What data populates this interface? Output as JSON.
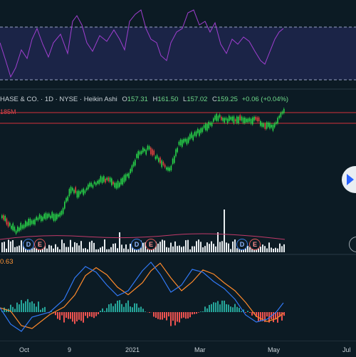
{
  "symbol_legend": {
    "title": "HASE & CO. · 1D · NYSE · Heikin Ashi",
    "open_key": "O",
    "open": "157.31",
    "high_key": "H",
    "high": "161.50",
    "low_key": "L",
    "low": "157.02",
    "close_key": "C",
    "close": "159.25",
    "change": "+0.06 (+0.04%)"
  },
  "price_line_label": "185M",
  "macd_value": "0.63",
  "event_markers": [
    {
      "letter": "D"
    },
    {
      "letter": "E"
    },
    {
      "letter": "D"
    },
    {
      "letter": "E"
    },
    {
      "letter": "D"
    },
    {
      "letter": "E"
    }
  ],
  "x_axis": [
    "Oct",
    "9",
    "2021",
    "Mar",
    "May",
    "Jul"
  ],
  "colors": {
    "background": "#0c1b24",
    "rsi_band": "#1b2447",
    "rsi_line": "#a03fd0",
    "up_candle": "#29d649",
    "down_candle": "#e0433f",
    "resistance_line": "#d3303a",
    "macd_line": "#3179f5",
    "signal_line": "#ff8a2b",
    "hist_up": "#26a69a",
    "hist_down": "#ef5350"
  },
  "icons": {
    "scroll_to_realtime": "chevron-right-icon"
  }
}
